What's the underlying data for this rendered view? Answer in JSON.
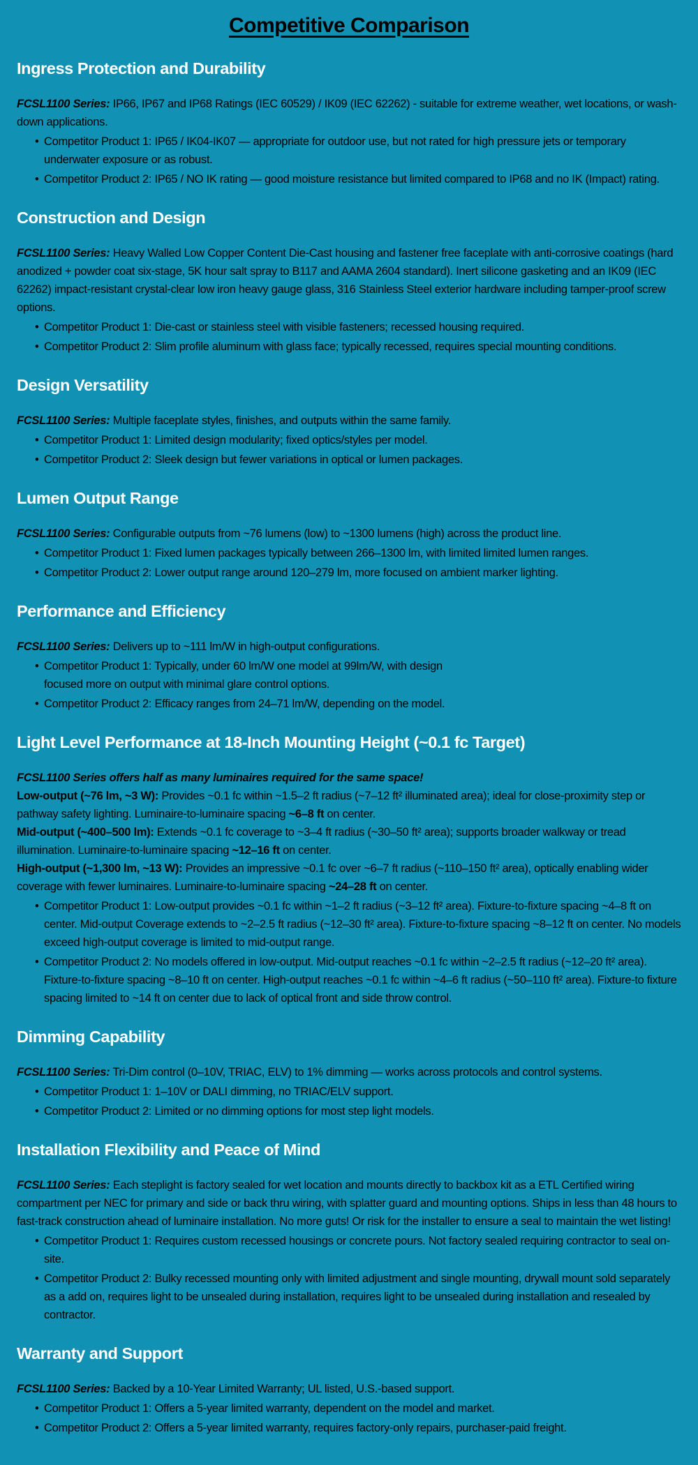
{
  "page": {
    "title": "Competitive Comparison",
    "colors": {
      "background": "#1191B4",
      "title_text": "#000000",
      "heading_text": "#FFFFFF",
      "body_text": "#000000"
    }
  },
  "sections": [
    {
      "id": "ingress-protection-and-durability",
      "heading": "Ingress Protection and Durability",
      "blocks": [
        {
          "type": "paragraph",
          "segments": [
            {
              "text": "FCSL1100 Series:",
              "style": "lead"
            },
            {
              "text": " IP66, IP67 and IP68 Ratings (IEC 60529) / IK09 (IEC 62262) - suitable for extreme weather, wet locations, or wash-down applications."
            }
          ]
        },
        {
          "type": "bullet",
          "segments": [
            {
              "text": "Competitor Product 1: IP65 / IK04-IK07 — appropriate for outdoor use, but not rated for high pressure jets or temporary underwater exposure or as robust."
            }
          ]
        },
        {
          "type": "bullet",
          "segments": [
            {
              "text": "Competitor Product 2: IP65 / NO IK rating — good moisture resistance but limited compared to IP68 and no IK (Impact) rating."
            }
          ]
        }
      ]
    },
    {
      "id": "construction-and-design",
      "heading": "Construction and Design",
      "blocks": [
        {
          "type": "paragraph",
          "segments": [
            {
              "text": "FCSL1100 Series:",
              "style": "lead"
            },
            {
              "text": " Heavy Walled Low Copper Content Die-Cast housing and fastener free faceplate with anti-corrosive coatings (hard anodized + powder coat six-stage, 5K hour salt spray to B117 and AAMA 2604 standard). Inert silicone gasketing and an IK09 (IEC 62262) impact-resistant crystal-clear low iron heavy gauge glass, 316 Stainless Steel exterior hardware including tamper-proof screw options."
            }
          ]
        },
        {
          "type": "bullet",
          "segments": [
            {
              "text": "Competitor Product 1: Die-cast or stainless steel with visible fasteners; recessed housing required."
            }
          ]
        },
        {
          "type": "bullet",
          "segments": [
            {
              "text": "Competitor Product 2: Slim profile aluminum with glass face; typically recessed, requires special mounting conditions."
            }
          ]
        }
      ]
    },
    {
      "id": "design-versatility",
      "heading": "Design Versatility",
      "blocks": [
        {
          "type": "paragraph",
          "segments": [
            {
              "text": "FCSL1100 Series:",
              "style": "lead"
            },
            {
              "text": " Multiple faceplate styles, finishes, and outputs within the same family."
            }
          ]
        },
        {
          "type": "bullet",
          "segments": [
            {
              "text": "Competitor Product 1: Limited design modularity; fixed optics/styles per model."
            }
          ]
        },
        {
          "type": "bullet",
          "segments": [
            {
              "text": "Competitor Product 2: Sleek design but fewer variations in optical or lumen packages."
            }
          ]
        }
      ]
    },
    {
      "id": "lumen-output-range",
      "heading": "Lumen Output Range",
      "blocks": [
        {
          "type": "paragraph",
          "segments": [
            {
              "text": "FCSL1100 Series:",
              "style": "lead"
            },
            {
              "text": " Configurable outputs from ~76 lumens (low) to ~1300 lumens (high) across the product line."
            }
          ]
        },
        {
          "type": "bullet",
          "segments": [
            {
              "text": "Competitor Product 1: Fixed lumen packages typically between 266–1300 lm, with limited limited lumen ranges."
            }
          ]
        },
        {
          "type": "bullet",
          "segments": [
            {
              "text": "Competitor Product 2: Lower output range around 120–279 lm, more focused on ambient marker lighting."
            }
          ]
        }
      ]
    },
    {
      "id": "performance-and-efficiency",
      "heading": "Performance and Efficiency",
      "blocks": [
        {
          "type": "paragraph",
          "segments": [
            {
              "text": "FCSL1100 Series:",
              "style": "lead"
            },
            {
              "text": " Delivers up to ~111 lm/W in high-output configurations."
            }
          ]
        },
        {
          "type": "bullet",
          "segments": [
            {
              "text": "Competitor Product 1: Typically, under 60 lm/W one model at 99lm/W, with design\nfocused more on output with minimal glare control options."
            }
          ]
        },
        {
          "type": "bullet",
          "segments": [
            {
              "text": "Competitor Product 2: Efficacy ranges from 24–71 lm/W, depending on the model."
            }
          ]
        }
      ]
    },
    {
      "id": "light-level-performance",
      "heading": "Light Level Performance at 18-Inch Mounting Height (~0.1 fc Target)",
      "blocks": [
        {
          "type": "paragraph",
          "segments": [
            {
              "text": "FCSL1100 Series offers half as many luminaires required for the same space!",
              "style": "bolditalic"
            }
          ]
        },
        {
          "type": "paragraph",
          "segments": [
            {
              "text": "Low-output (~76 lm, ~3 W):",
              "style": "bold"
            },
            {
              "text": " Provides ~0.1 fc within ~1.5–2 ft radius (~7–12 ft² illuminated area); ideal for close-proximity step or pathway safety lighting. Luminaire-to-luminaire spacing "
            },
            {
              "text": "~6–8 ft",
              "style": "bold"
            },
            {
              "text": " on center."
            }
          ]
        },
        {
          "type": "paragraph",
          "segments": [
            {
              "text": "Mid-output (~400–500 lm):",
              "style": "bold"
            },
            {
              "text": " Extends ~0.1 fc coverage to ~3–4 ft radius (~30–50 ft² area); supports broader walkway or tread illumination. Luminaire-to-luminaire spacing "
            },
            {
              "text": "~12–16 ft",
              "style": "bold"
            },
            {
              "text": " on center."
            }
          ]
        },
        {
          "type": "paragraph",
          "segments": [
            {
              "text": "High-output (~1,300 lm, ~13 W):",
              "style": "bold"
            },
            {
              "text": " Provides an impressive ~0.1 fc over ~6–7 ft radius (~110–150 ft² area), optically enabling wider coverage with fewer luminaires. Luminaire-to-luminaire spacing "
            },
            {
              "text": "~24–28 ft",
              "style": "bold"
            },
            {
              "text": " on center."
            }
          ]
        },
        {
          "type": "bullet",
          "segments": [
            {
              "text": "Competitor Product 1: Low-output provides ~0.1 fc within ~1–2 ft radius (~3–12 ft² area). Fixture-to-fixture spacing ~4–8 ft on center. Mid-output Coverage extends to ~2–2.5 ft radius (~12–30 ft² area). Fixture-to-fixture spacing ~8–12 ft on center. No models exceed high-output coverage is limited to mid-output range."
            }
          ]
        },
        {
          "type": "bullet",
          "segments": [
            {
              "text": "Competitor Product 2: No models offered in low-output. Mid-output reaches ~0.1 fc within ~2–2.5 ft radius (~12–20 ft² area). Fixture-to-fixture spacing ~8–10 ft on center. High-output reaches ~0.1 fc within ~4–6 ft radius (~50–110 ft² area). Fixture-to fixture spacing limited to ~14 ft on center due to lack of optical front and side throw control."
            }
          ]
        }
      ]
    },
    {
      "id": "dimming-capability",
      "heading": "Dimming Capability",
      "blocks": [
        {
          "type": "paragraph",
          "segments": [
            {
              "text": "FCSL1100 Series:",
              "style": "lead"
            },
            {
              "text": " Tri-Dim control (0–10V, TRIAC, ELV) to 1% dimming — works across protocols and control systems."
            }
          ]
        },
        {
          "type": "bullet",
          "segments": [
            {
              "text": "Competitor Product 1: 1–10V or DALI dimming, no TRIAC/ELV support."
            }
          ]
        },
        {
          "type": "bullet",
          "segments": [
            {
              "text": "Competitor Product 2: Limited or no dimming options for most step light models."
            }
          ]
        }
      ]
    },
    {
      "id": "installation-flexibility",
      "heading": "Installation Flexibility and Peace of Mind",
      "blocks": [
        {
          "type": "paragraph",
          "segments": [
            {
              "text": "FCSL1100 Series:",
              "style": "lead"
            },
            {
              "text": " Each steplight is factory sealed for wet location and mounts directly to backbox kit as a ETL Certified wiring compartment per NEC for primary and side or back thru wiring, with splatter guard and mounting options. Ships in less than 48 hours to fast-track construction ahead of luminaire installation. No more guts! Or risk for the installer to ensure a seal to maintain the wet listing!"
            }
          ]
        },
        {
          "type": "bullet",
          "segments": [
            {
              "text": "Competitor Product 1: Requires custom recessed housings or concrete pours. Not factory sealed requiring contractor to seal on-site."
            }
          ]
        },
        {
          "type": "bullet",
          "segments": [
            {
              "text": "Competitor Product 2: Bulky recessed mounting only with limited adjustment and single mounting, drywall mount sold separately as a add on, requires light to be unsealed during installation, requires light to be unsealed during installation and resealed by contractor."
            }
          ]
        }
      ]
    },
    {
      "id": "warranty-and-support",
      "heading": "Warranty and Support",
      "blocks": [
        {
          "type": "paragraph",
          "segments": [
            {
              "text": "FCSL1100 Series:",
              "style": "lead"
            },
            {
              "text": " Backed by a 10-Year Limited Warranty; UL listed, U.S.-based support."
            }
          ]
        },
        {
          "type": "bullet",
          "segments": [
            {
              "text": "Competitor Product 1: Offers a 5-year limited warranty, dependent on the model and market."
            }
          ]
        },
        {
          "type": "bullet",
          "segments": [
            {
              "text": "Competitor Product 2: Offers a 5-year limited warranty, requires factory-only repairs, purchaser-paid freight."
            }
          ]
        }
      ]
    }
  ]
}
